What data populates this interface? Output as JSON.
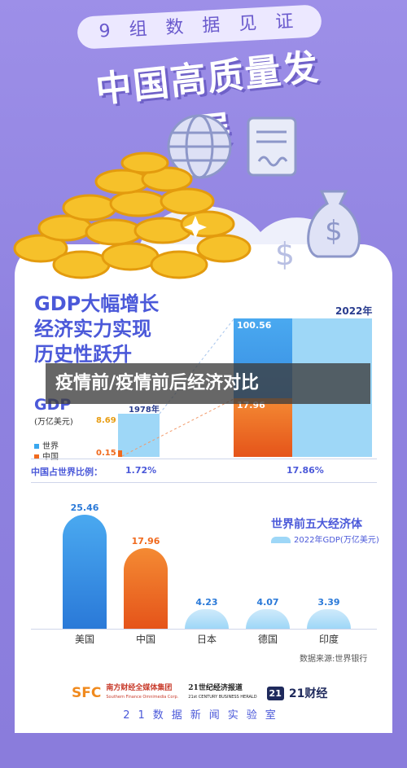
{
  "header": {
    "subtitle": "9 组 数 据 见 证",
    "title": "中国高质量发展"
  },
  "gdp_section": {
    "headline_lines": [
      "GDP大幅增长",
      "经济实力实现",
      "历史性跃升"
    ],
    "gdp_label": "GDP",
    "gdp_unit": "(万亿美元)",
    "year_start": "1978年",
    "year_end": "2022年",
    "legend_world": "世界",
    "legend_china": "中国",
    "ratio_label": "中国占世界比例：",
    "ratio_1978": "1.72%",
    "ratio_2022": "17.86%",
    "world_1978": "8.69",
    "china_1978": "0.15",
    "world_2022": "100.56",
    "china_2022": "17.96"
  },
  "overlay_banner": "疫情前/疫情前后经济对比",
  "top5": {
    "title": "世界前五大经济体",
    "legend": "2022年GDP(万亿美元)",
    "source": "数据来源:世界银行"
  },
  "chart_data": [
    {
      "type": "bar",
      "title": "",
      "categories": [
        "1978年",
        "2022年"
      ],
      "series": [
        {
          "name": "世界",
          "values": [
            8.69,
            100.56
          ]
        },
        {
          "name": "中国",
          "values": [
            0.15,
            17.96
          ]
        }
      ],
      "ratio": [
        "1.72%",
        "17.86%"
      ]
    },
    {
      "type": "bar",
      "title": "世界前五大经济体",
      "categories": [
        "美国",
        "中国",
        "日本",
        "德国",
        "印度"
      ],
      "values": [
        25.46,
        17.96,
        4.23,
        4.07,
        3.39
      ],
      "value_labels": [
        "25.46",
        "17.96",
        "4.23",
        "4.07",
        "3.39"
      ]
    }
  ],
  "footer": {
    "logo1_mark": "SFC",
    "logo1_text": "南方财经全媒体集团",
    "logo1_sub": "Southern Finance Omnimedia Corp.",
    "logo2_text": "21世纪经济报道",
    "logo2_sub": "21st CENTURY BUSINESS HERALD",
    "logo3_mark": "21",
    "logo3_text": "21财经",
    "lab": "21数据新闻实验室"
  },
  "colors": {
    "background": "#9d8fe8",
    "accent_blue": "#4b59d9",
    "bar_blue": "#3aa7ee",
    "bar_orange": "#f26b1d",
    "bar_light": "#9ed7f7"
  }
}
